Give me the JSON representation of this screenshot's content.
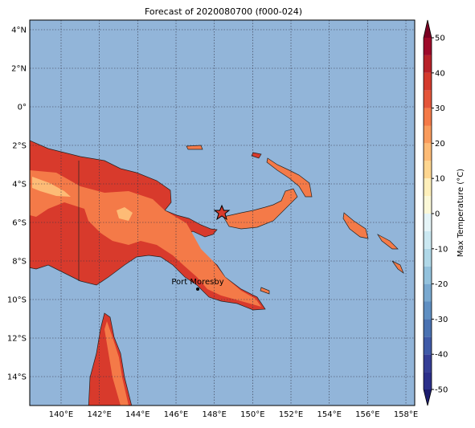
{
  "title": "Forecast of 2020080700 (f000-024)",
  "map": {
    "lon_labels": [
      "140°E",
      "142°E",
      "144°E",
      "146°E",
      "148°E",
      "150°E",
      "152°E",
      "154°E",
      "156°E",
      "158°E"
    ],
    "lat_labels": [
      "4°N",
      "2°N",
      "0°",
      "2°S",
      "4°S",
      "6°S",
      "8°S",
      "10°S",
      "12°S",
      "14°S"
    ],
    "places": [
      {
        "label": "Port Moresby"
      }
    ]
  },
  "colorbar": {
    "label": "Max Temperature (°C)",
    "ticks": [
      -50,
      -40,
      -30,
      -20,
      -10,
      0,
      10,
      20,
      30,
      40,
      50
    ],
    "colors": [
      "#2b2f8a",
      "#353e96",
      "#3f5aa8",
      "#4a72b2",
      "#5f8fc2",
      "#79a9d0",
      "#93c2dd",
      "#b0d8e8",
      "#cbe8f1",
      "#e5f4f7",
      "#fbf8d8",
      "#fff0bb",
      "#fed690",
      "#fdbb76",
      "#f99b5c",
      "#f47a48",
      "#e4553a",
      "#d43a2d",
      "#b82129",
      "#9e0a2a"
    ],
    "under_color": "#1c1c6e",
    "over_color": "#7a0022"
  }
}
